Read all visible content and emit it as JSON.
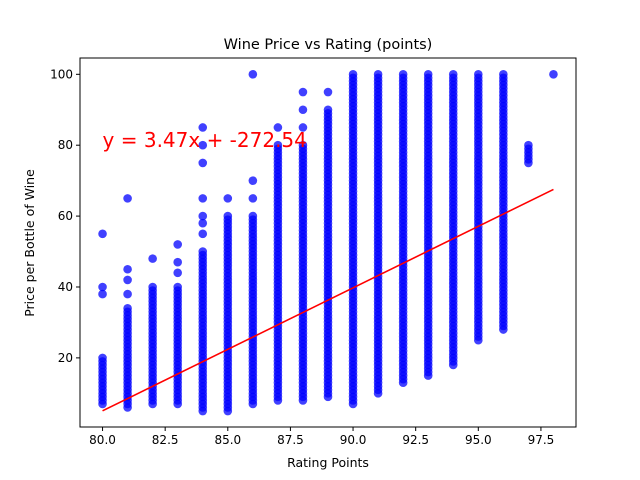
{
  "chart_data": {
    "type": "scatter",
    "title": "Wine Price vs Rating (points)",
    "xlabel": "Rating Points",
    "ylabel": "Price per Bottle of Wine",
    "xlim": [
      79.1,
      98.9
    ],
    "ylim": [
      0.5,
      104.6
    ],
    "xticks": [
      80.0,
      82.5,
      85.0,
      87.5,
      90.0,
      92.5,
      95.0,
      97.5
    ],
    "yticks": [
      20,
      40,
      60,
      80,
      100
    ],
    "xtick_labels": [
      "80.0",
      "82.5",
      "85.0",
      "87.5",
      "90.0",
      "92.5",
      "95.0",
      "97.5"
    ],
    "ytick_labels": [
      "20",
      "40",
      "60",
      "80",
      "100"
    ],
    "grid": false,
    "annotation": {
      "text": "y = 3.47x + -272.54",
      "x": 80,
      "y": 80,
      "color": "#ff0000"
    },
    "series": [
      {
        "kind": "scatter",
        "color": "#0000ff",
        "alpha": 0.75,
        "columns": [
          {
            "x": 80,
            "range": [
              7,
              20
            ],
            "extra": [
              38,
              40,
              55
            ]
          },
          {
            "x": 81,
            "range": [
              6,
              34
            ],
            "extra": [
              38,
              42,
              45,
              65
            ]
          },
          {
            "x": 82,
            "range": [
              7,
              40
            ],
            "extra": [
              48
            ]
          },
          {
            "x": 83,
            "range": [
              7,
              40
            ],
            "extra": [
              44,
              47,
              52
            ]
          },
          {
            "x": 84,
            "range": [
              5,
              50
            ],
            "extra": [
              55,
              58,
              60,
              65,
              75,
              80,
              85
            ]
          },
          {
            "x": 85,
            "range": [
              5,
              60
            ],
            "extra": [
              65
            ]
          },
          {
            "x": 86,
            "range": [
              7,
              60
            ],
            "extra": [
              65,
              70,
              100
            ]
          },
          {
            "x": 87,
            "range": [
              8,
              80
            ],
            "extra": [
              85
            ]
          },
          {
            "x": 88,
            "range": [
              8,
              80
            ],
            "extra": [
              85,
              90,
              95
            ]
          },
          {
            "x": 89,
            "range": [
              9,
              90
            ],
            "extra": [
              95
            ]
          },
          {
            "x": 90,
            "range": [
              7,
              100
            ],
            "extra": []
          },
          {
            "x": 91,
            "range": [
              10,
              100
            ],
            "extra": []
          },
          {
            "x": 92,
            "range": [
              13,
              100
            ],
            "extra": []
          },
          {
            "x": 93,
            "range": [
              15,
              100
            ],
            "extra": []
          },
          {
            "x": 94,
            "range": [
              18,
              100
            ],
            "extra": []
          },
          {
            "x": 95,
            "range": [
              25,
              100
            ],
            "extra": []
          },
          {
            "x": 96,
            "range": [
              28,
              100
            ],
            "extra": []
          },
          {
            "x": 97,
            "range": [
              75,
              80
            ],
            "extra": []
          },
          {
            "x": 98,
            "range": [
              100,
              100
            ],
            "extra": []
          }
        ]
      },
      {
        "kind": "line",
        "color": "#ff0000",
        "slope": 3.47,
        "intercept": -272.54,
        "x": [
          80,
          98
        ]
      }
    ]
  }
}
